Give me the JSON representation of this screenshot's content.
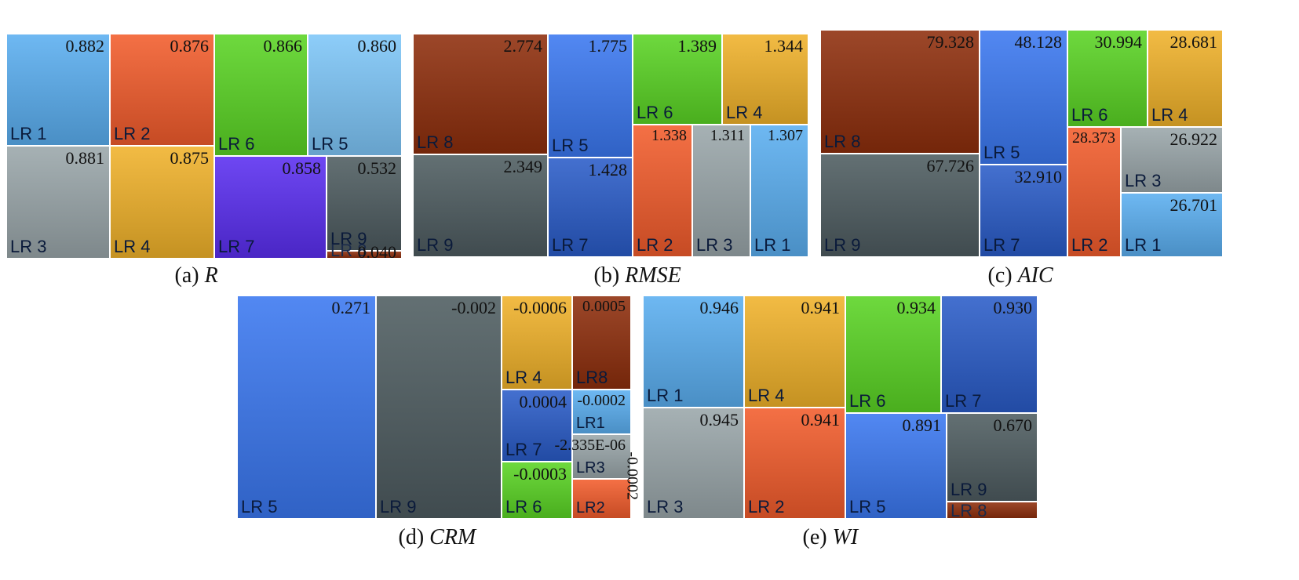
{
  "colors": {
    "LR 1": "#5aaef0",
    "LR 2": "#f25c2c",
    "LR 3": "#9aa6aa",
    "LR 4": "#f0b22a",
    "LR 5": "#3a78f0",
    "LR 6": "#5ad424",
    "LR 7": "#2a5cc8",
    "LR 8": "#8e2e0c",
    "LR 9": "#4e5c60",
    "LR 5 (a)": "#7ec6f8",
    "LR 7 (a)": "#5a2ef0"
  },
  "chart_data": [
    {
      "type": "treemap",
      "caption_prefix": "(a)",
      "caption_metric": "R",
      "items": [
        {
          "label": "LR 1",
          "value": 0.882,
          "value_text": "0.882"
        },
        {
          "label": "LR 3",
          "value": 0.881,
          "value_text": "0.881"
        },
        {
          "label": "LR 2",
          "value": 0.876,
          "value_text": "0.876"
        },
        {
          "label": "LR 4",
          "value": 0.875,
          "value_text": "0.875"
        },
        {
          "label": "LR 6",
          "value": 0.866,
          "value_text": "0.866"
        },
        {
          "label": "LR 5",
          "value": 0.86,
          "value_text": "0.860"
        },
        {
          "label": "LR 7",
          "value": 0.858,
          "value_text": "0.858"
        },
        {
          "label": "LR 9",
          "value": 0.532,
          "value_text": "0.532"
        },
        {
          "label": "LR 8",
          "value": 0.04,
          "value_text": "0.040"
        }
      ]
    },
    {
      "type": "treemap",
      "caption_prefix": "(b)",
      "caption_metric": "RMSE",
      "items": [
        {
          "label": "LR 8",
          "value": 2.774,
          "value_text": "2.774"
        },
        {
          "label": "LR 9",
          "value": 2.349,
          "value_text": "2.349"
        },
        {
          "label": "LR 5",
          "value": 1.775,
          "value_text": "1.775"
        },
        {
          "label": "LR 7",
          "value": 1.428,
          "value_text": "1.428"
        },
        {
          "label": "LR 6",
          "value": 1.389,
          "value_text": "1.389"
        },
        {
          "label": "LR 4",
          "value": 1.344,
          "value_text": "1.344"
        },
        {
          "label": "LR 2",
          "value": 1.338,
          "value_text": "1.338"
        },
        {
          "label": "LR 3",
          "value": 1.311,
          "value_text": "1.311"
        },
        {
          "label": "LR 1",
          "value": 1.307,
          "value_text": "1.307"
        }
      ]
    },
    {
      "type": "treemap",
      "caption_prefix": "(c)",
      "caption_metric": "AIC",
      "items": [
        {
          "label": "LR 8",
          "value": 79.328,
          "value_text": "79.328"
        },
        {
          "label": "LR 9",
          "value": 67.726,
          "value_text": "67.726"
        },
        {
          "label": "LR 5",
          "value": 48.128,
          "value_text": "48.128"
        },
        {
          "label": "LR 7",
          "value": 32.91,
          "value_text": "32.910"
        },
        {
          "label": "LR 6",
          "value": 30.994,
          "value_text": "30.994"
        },
        {
          "label": "LR 4",
          "value": 28.681,
          "value_text": "28.681"
        },
        {
          "label": "LR 2",
          "value": 28.373,
          "value_text": "28.373"
        },
        {
          "label": "LR 3",
          "value": 26.922,
          "value_text": "26.922"
        },
        {
          "label": "LR 1",
          "value": 26.701,
          "value_text": "26.701"
        }
      ]
    },
    {
      "type": "treemap",
      "caption_prefix": "(d)",
      "caption_metric": "CRM",
      "items": [
        {
          "label": "LR 5",
          "value": 0.271,
          "value_text": "0.271"
        },
        {
          "label": "LR 9",
          "value": -0.002,
          "value_text": "-0.002"
        },
        {
          "label": "LR 4",
          "value": -0.0006,
          "value_text": "-0.0006"
        },
        {
          "label": "LR8",
          "value": 0.0005,
          "value_text": "0.0005"
        },
        {
          "label": "LR 7",
          "value": 0.0004,
          "value_text": "0.0004"
        },
        {
          "label": "LR1",
          "value": -0.0002,
          "value_text": "-0.0002"
        },
        {
          "label": "LR3",
          "value": -2.335e-06,
          "value_text": "-2.335E-06"
        },
        {
          "label": "LR 6",
          "value": -0.0003,
          "value_text": "-0.0003"
        },
        {
          "label": "LR2",
          "value": -0.0002,
          "value_text": "-0.0002"
        }
      ]
    },
    {
      "type": "treemap",
      "caption_prefix": "(e)",
      "caption_metric": "WI",
      "items": [
        {
          "label": "LR 1",
          "value": 0.946,
          "value_text": "0.946"
        },
        {
          "label": "LR 3",
          "value": 0.945,
          "value_text": "0.945"
        },
        {
          "label": "LR 4",
          "value": 0.941,
          "value_text": "0.941"
        },
        {
          "label": "LR 2",
          "value": 0.941,
          "value_text": "0.941"
        },
        {
          "label": "LR 6",
          "value": 0.934,
          "value_text": "0.934"
        },
        {
          "label": "LR 7",
          "value": 0.93,
          "value_text": "0.930"
        },
        {
          "label": "LR 5",
          "value": 0.891,
          "value_text": "0.891"
        },
        {
          "label": "LR 9",
          "value": 0.67,
          "value_text": "0.670"
        },
        {
          "label": "LR 8",
          "value": null,
          "value_text": ""
        }
      ]
    }
  ]
}
